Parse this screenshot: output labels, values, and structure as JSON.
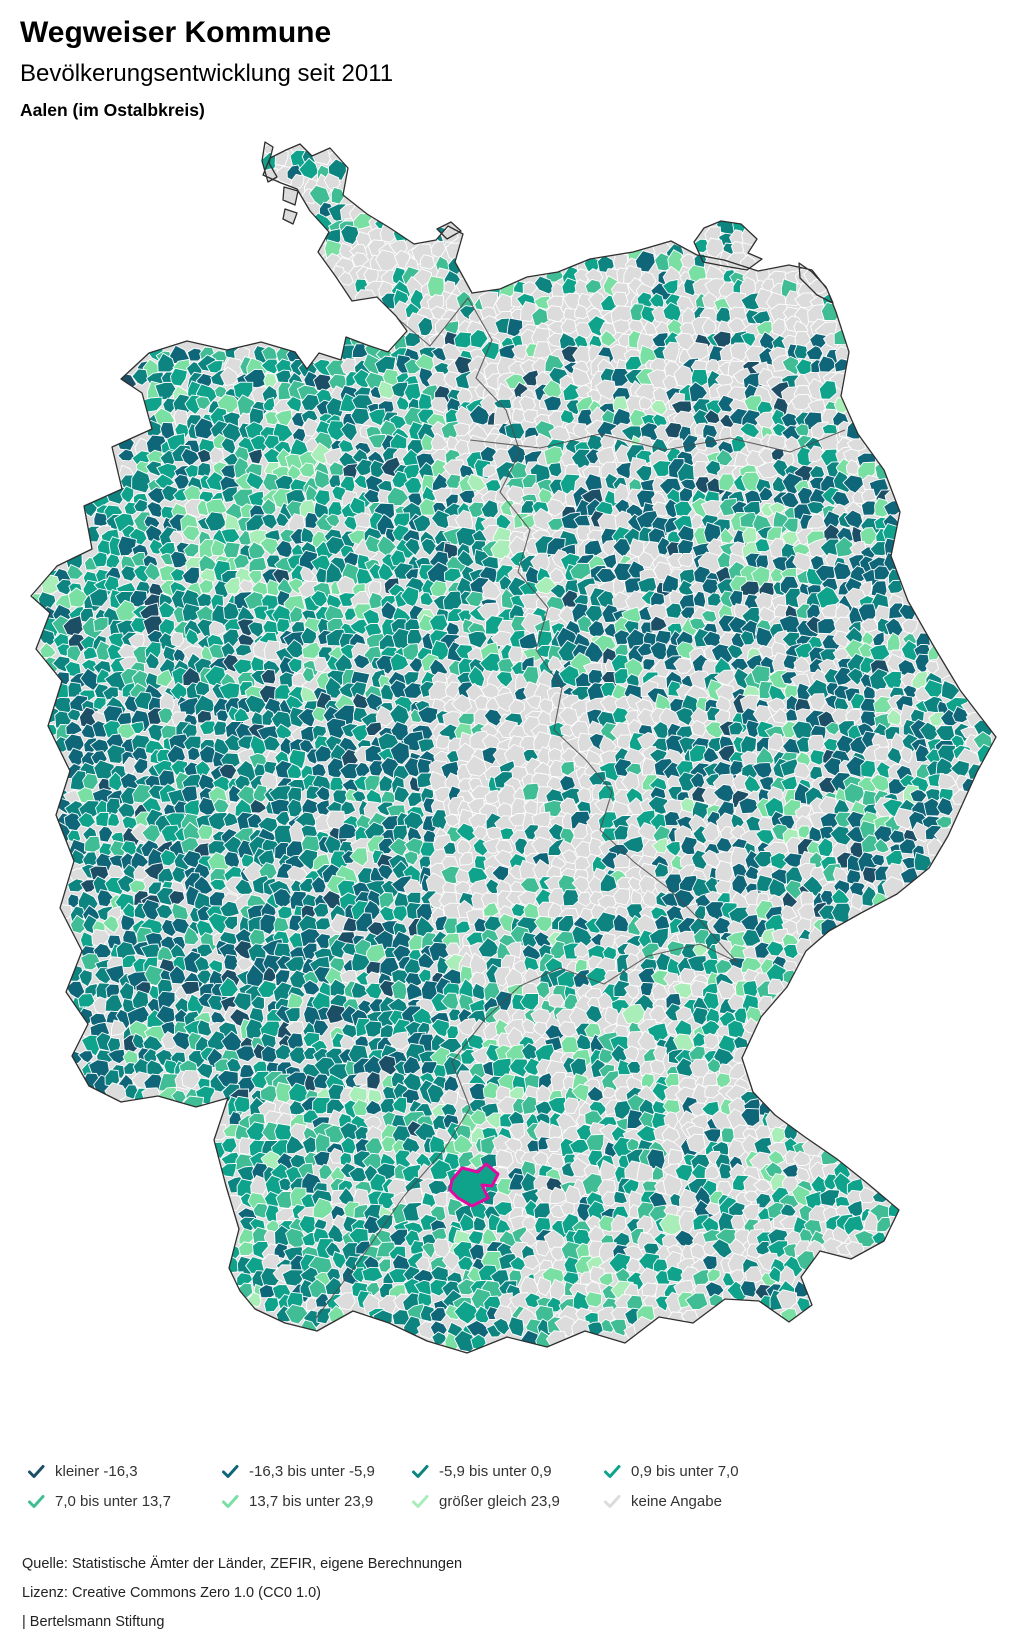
{
  "header": {
    "title": "Wegweiser Kommune",
    "subtitle": "Bevölkerungsentwicklung seit 2011",
    "location": "Aalen (im Ostalbkreis)"
  },
  "legend": {
    "items": [
      {
        "label": "kleiner -16,3",
        "color": "#1c4f66"
      },
      {
        "label": "-16,3 bis unter -5,9",
        "color": "#0f6678"
      },
      {
        "label": "-5,9 bis unter 0,9",
        "color": "#0d8480"
      },
      {
        "label": "0,9 bis unter 7,0",
        "color": "#10a38c"
      },
      {
        "label": "7,0 bis unter 13,7",
        "color": "#41bd95"
      },
      {
        "label": "13,7 bis unter 23,9",
        "color": "#79dfa3"
      },
      {
        "label": "größer gleich 23,9",
        "color": "#a9edb8"
      },
      {
        "label": "keine Angabe",
        "color": "#dcdcdc"
      }
    ]
  },
  "map": {
    "highlighted_municipality": "Aalen (im Ostalbkreis)",
    "highlight_color": "#e00a9e",
    "country_border_color": "#2f2f2f",
    "state_border_color": "#4a4a4a",
    "no_data_color": "#dcdcdc"
  },
  "footer": {
    "source": "Quelle: Statistische Ämter der Länder, ZEFIR, eigene Berechnungen",
    "license": "Lizenz: Creative Commons Zero 1.0 (CC0 1.0)",
    "attribution": "| Bertelsmann Stiftung"
  }
}
